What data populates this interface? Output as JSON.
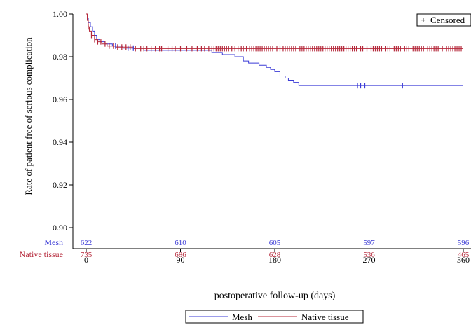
{
  "chart_data": {
    "type": "line",
    "subtype": "kaplan-meier",
    "title": "",
    "xlabel": "postoperative follow-up (days)",
    "ylabel": "Rate of patient free of serious complication",
    "xlim": [
      0,
      360
    ],
    "ylim": [
      0.9,
      1.0
    ],
    "xticks": [
      0,
      90,
      180,
      270,
      360
    ],
    "yticks": [
      0.9,
      0.92,
      0.94,
      0.96,
      0.98,
      1.0
    ],
    "ytick_labels": [
      "0.90",
      "0.92",
      "0.94",
      "0.96",
      "0.98",
      "1.00"
    ],
    "grid": false,
    "legend_position": "bottom",
    "censored_label": "Censored",
    "censored_symbol": "+",
    "series": [
      {
        "name": "Mesh",
        "color": "#3b3bd6",
        "steps": [
          [
            0,
            1.0
          ],
          [
            1,
            0.998
          ],
          [
            2,
            0.996
          ],
          [
            4,
            0.994
          ],
          [
            6,
            0.992
          ],
          [
            8,
            0.99
          ],
          [
            10,
            0.988
          ],
          [
            13,
            0.987
          ],
          [
            18,
            0.986
          ],
          [
            25,
            0.985
          ],
          [
            35,
            0.984
          ],
          [
            55,
            0.983
          ],
          [
            120,
            0.982
          ],
          [
            130,
            0.981
          ],
          [
            142,
            0.98
          ],
          [
            150,
            0.978
          ],
          [
            155,
            0.977
          ],
          [
            165,
            0.976
          ],
          [
            172,
            0.975
          ],
          [
            176,
            0.974
          ],
          [
            180,
            0.973
          ],
          [
            185,
            0.971
          ],
          [
            190,
            0.97
          ],
          [
            193,
            0.969
          ],
          [
            198,
            0.968
          ],
          [
            203,
            0.9665
          ],
          [
            360,
            0.9665
          ]
        ],
        "censored": [
          28,
          40,
          45,
          259,
          262,
          266,
          302
        ],
        "at_risk": [
          622,
          610,
          605,
          597,
          596
        ]
      },
      {
        "name": "Native tissue",
        "color": "#b5283a",
        "steps": [
          [
            0,
            1.0
          ],
          [
            1,
            0.997
          ],
          [
            2,
            0.994
          ],
          [
            3,
            0.992
          ],
          [
            5,
            0.99
          ],
          [
            8,
            0.988
          ],
          [
            11,
            0.987
          ],
          [
            15,
            0.986
          ],
          [
            20,
            0.985
          ],
          [
            28,
            0.9845
          ],
          [
            45,
            0.9838
          ],
          [
            360,
            0.9838
          ]
        ],
        "censored": [
          2,
          5,
          8,
          11,
          14,
          18,
          22,
          26,
          30,
          34,
          38,
          42,
          47,
          52,
          55,
          58,
          62,
          66,
          70,
          72,
          78,
          82,
          85,
          90,
          96,
          101,
          106,
          110,
          113,
          117,
          120,
          122,
          124,
          126,
          128,
          130,
          132,
          134,
          136,
          139,
          142,
          145,
          148,
          150,
          153,
          156,
          158,
          160,
          162,
          164,
          166,
          168,
          170,
          172,
          174,
          176,
          178,
          182,
          185,
          188,
          190,
          192,
          194,
          196,
          198,
          200,
          204,
          206,
          208,
          210,
          212,
          214,
          216,
          218,
          220,
          222,
          224,
          226,
          228,
          230,
          232,
          234,
          236,
          238,
          240,
          242,
          244,
          246,
          248,
          250,
          252,
          254,
          256,
          258,
          262,
          264,
          268,
          272,
          274,
          276,
          278,
          280,
          282,
          286,
          288,
          290,
          294,
          296,
          298,
          300,
          304,
          306,
          308,
          312,
          314,
          316,
          318,
          320,
          322,
          326,
          328,
          330,
          332,
          334,
          336,
          340,
          344,
          346,
          348,
          350,
          352,
          354,
          356,
          358
        ],
        "at_risk": [
          735,
          686,
          628,
          536,
          465
        ]
      }
    ]
  }
}
